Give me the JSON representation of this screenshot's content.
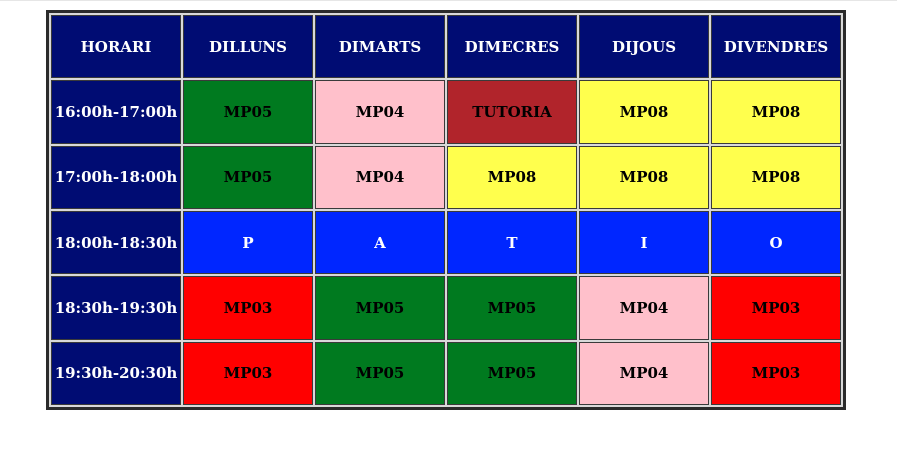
{
  "colors": {
    "header": "#000c73",
    "green": "#007a1f",
    "pink": "#ffc0cb",
    "brown": "#b1242b",
    "yellow": "#ffff4d",
    "blue": "#0026ff",
    "red": "#ff0000"
  },
  "schedule": {
    "headers": [
      "HORARI",
      "DILLUNS",
      "DIMARTS",
      "DIMECRES",
      "DIJOUS",
      "DIVENDRES"
    ],
    "rows": [
      {
        "time": "16:00h-17:00h",
        "cells": [
          {
            "text": "MP05",
            "color": "green"
          },
          {
            "text": "MP04",
            "color": "pink"
          },
          {
            "text": "TUTORIA",
            "color": "brown"
          },
          {
            "text": "MP08",
            "color": "yellow"
          },
          {
            "text": "MP08",
            "color": "yellow"
          }
        ]
      },
      {
        "time": "17:00h-18:00h",
        "cells": [
          {
            "text": "MP05",
            "color": "green"
          },
          {
            "text": "MP04",
            "color": "pink"
          },
          {
            "text": "MP08",
            "color": "yellow"
          },
          {
            "text": "MP08",
            "color": "yellow"
          },
          {
            "text": "MP08",
            "color": "yellow"
          }
        ]
      },
      {
        "time": "18:00h-18:30h",
        "cells": [
          {
            "text": "P",
            "color": "blue"
          },
          {
            "text": "A",
            "color": "blue"
          },
          {
            "text": "T",
            "color": "blue"
          },
          {
            "text": "I",
            "color": "blue"
          },
          {
            "text": "O",
            "color": "blue"
          }
        ]
      },
      {
        "time": "18:30h-19:30h",
        "cells": [
          {
            "text": "MP03",
            "color": "red"
          },
          {
            "text": "MP05",
            "color": "green"
          },
          {
            "text": "MP05",
            "color": "green"
          },
          {
            "text": "MP04",
            "color": "pink"
          },
          {
            "text": "MP03",
            "color": "red"
          }
        ]
      },
      {
        "time": "19:30h-20:30h",
        "cells": [
          {
            "text": "MP03",
            "color": "red"
          },
          {
            "text": "MP05",
            "color": "green"
          },
          {
            "text": "MP05",
            "color": "green"
          },
          {
            "text": "MP04",
            "color": "pink"
          },
          {
            "text": "MP03",
            "color": "red"
          }
        ]
      }
    ]
  }
}
